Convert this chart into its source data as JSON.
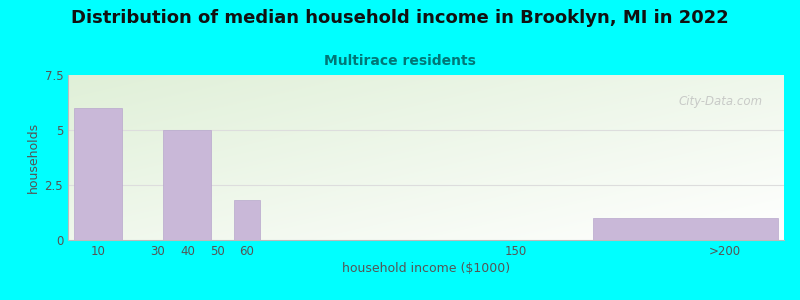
{
  "title": "Distribution of median household income in Brooklyn, MI in 2022",
  "subtitle": "Multirace residents",
  "xlabel": "household income ($1000)",
  "ylabel": "households",
  "bar_color": "#c9b8d8",
  "bar_edge_color": "#b8a8cc",
  "background_color": "#00ffff",
  "plot_bg_color_topleft": "#dff0d8",
  "plot_bg_color_bottomright": "#f8fff8",
  "ylim": [
    0,
    7.5
  ],
  "yticks": [
    0,
    2.5,
    5,
    7.5
  ],
  "watermark": "City-Data.com",
  "title_fontsize": 13,
  "subtitle_fontsize": 10,
  "axis_label_fontsize": 9,
  "tick_fontsize": 8.5,
  "tick_color": "#555555",
  "label_color": "#555555",
  "subtitle_color": "#007777",
  "title_color": "#111111",
  "gridline_color": "#dddddd",
  "xlim_left": 0,
  "xlim_right": 240
}
